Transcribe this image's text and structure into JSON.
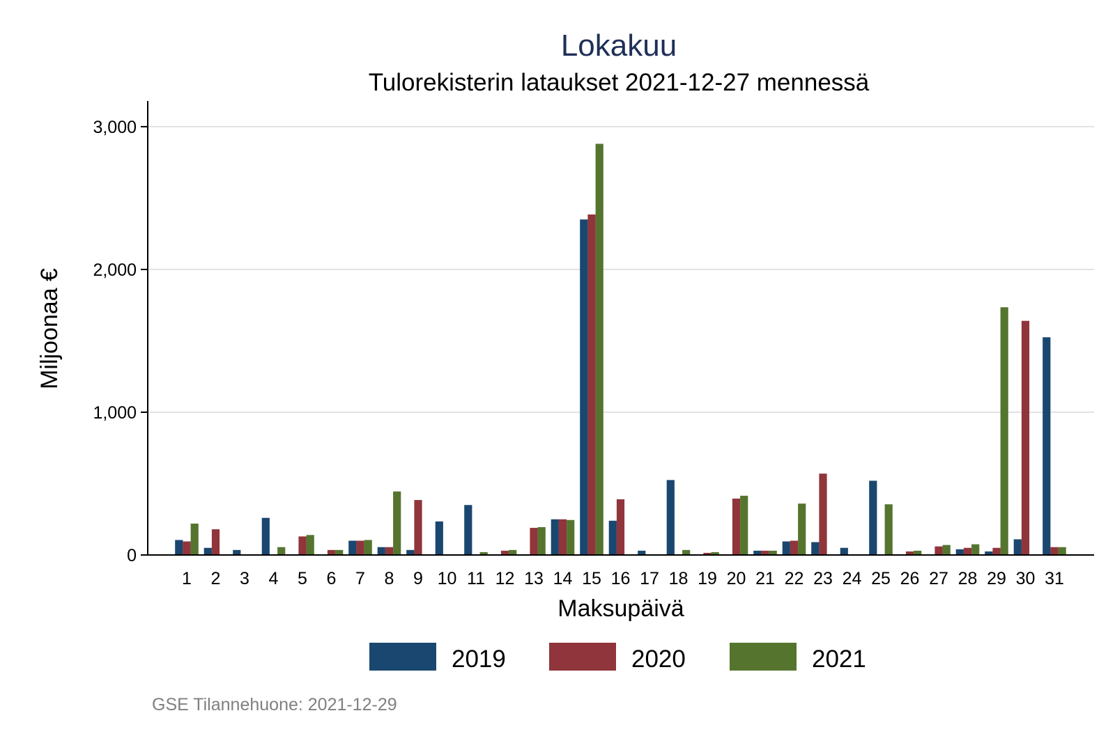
{
  "chart_data": {
    "type": "bar",
    "title": "Lokakuu",
    "subtitle": "Tulorekisterin lataukset 2021-12-27 mennessä",
    "xlabel": "Maksupäivä",
    "ylabel": "Miljoonaa €",
    "ylim": [
      0,
      3180
    ],
    "yticks": [
      0,
      1000,
      2000,
      3000
    ],
    "ytick_labels": [
      "0",
      "1,000",
      "2,000",
      "3,000"
    ],
    "grid": true,
    "legend_position": "bottom",
    "categories": [
      "1",
      "2",
      "3",
      "4",
      "5",
      "6",
      "7",
      "8",
      "9",
      "10",
      "11",
      "12",
      "13",
      "14",
      "15",
      "16",
      "17",
      "18",
      "19",
      "20",
      "21",
      "22",
      "23",
      "24",
      "25",
      "26",
      "27",
      "28",
      "29",
      "30",
      "31"
    ],
    "series": [
      {
        "name": "2019",
        "color": "#1a476f",
        "values": [
          105,
          50,
          35,
          260,
          5,
          0,
          100,
          55,
          35,
          235,
          350,
          0,
          0,
          250,
          2350,
          240,
          30,
          525,
          0,
          0,
          30,
          95,
          90,
          50,
          520,
          0,
          0,
          40,
          25,
          110,
          1525
        ]
      },
      {
        "name": "2020",
        "color": "#90353b",
        "values": [
          95,
          180,
          0,
          0,
          130,
          35,
          100,
          55,
          385,
          5,
          0,
          30,
          190,
          250,
          2385,
          390,
          0,
          0,
          15,
          395,
          30,
          100,
          570,
          0,
          0,
          25,
          60,
          50,
          50,
          1640,
          55
        ]
      },
      {
        "name": "2021",
        "color": "#55752f",
        "values": [
          220,
          0,
          0,
          55,
          140,
          35,
          105,
          445,
          0,
          5,
          20,
          35,
          195,
          245,
          2880,
          0,
          0,
          35,
          20,
          415,
          30,
          360,
          0,
          0,
          355,
          30,
          70,
          75,
          1735,
          0,
          55
        ]
      }
    ]
  },
  "note": "GSE Tilannehuone: 2021-12-29"
}
